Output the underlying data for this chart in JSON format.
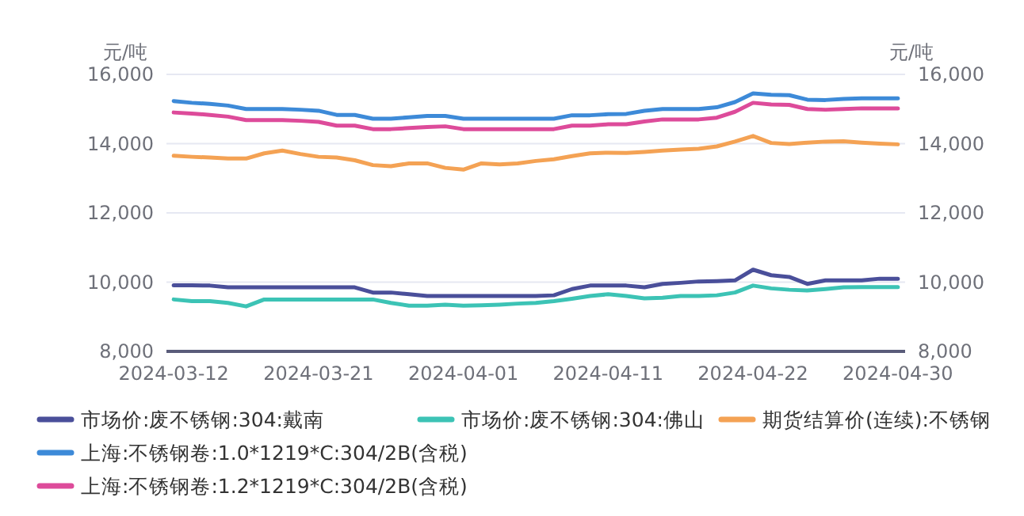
{
  "chart_data": {
    "type": "line",
    "categories": [
      "2024-03-12",
      null,
      null,
      null,
      null,
      null,
      null,
      null,
      "2024-03-21",
      null,
      null,
      null,
      null,
      null,
      null,
      null,
      "2024-04-01",
      null,
      null,
      null,
      null,
      null,
      null,
      null,
      "2024-04-11",
      null,
      null,
      null,
      null,
      null,
      null,
      null,
      "2024-04-22",
      null,
      null,
      null,
      null,
      null,
      null,
      null,
      "2024-04-30"
    ],
    "series": [
      {
        "name": "市场价:废不锈钢:304:戴南",
        "color": "#4a4f9a",
        "values": [
          9910,
          9910,
          9900,
          9850,
          9850,
          9850,
          9850,
          9850,
          9850,
          9850,
          9850,
          9700,
          9700,
          9650,
          9600,
          9600,
          9600,
          9600,
          9600,
          9600,
          9600,
          9620,
          9800,
          9900,
          9900,
          9900,
          9850,
          9950,
          9980,
          10020,
          10030,
          10050,
          10360,
          10200,
          10150,
          9950,
          10050,
          10050,
          10050,
          10100,
          10100
        ]
      },
      {
        "name": "市场价:废不锈钢:304:佛山",
        "color": "#3cc3b5",
        "values": [
          9500,
          9450,
          9450,
          9400,
          9300,
          9500,
          9500,
          9500,
          9500,
          9500,
          9500,
          9500,
          9400,
          9320,
          9320,
          9350,
          9320,
          9330,
          9350,
          9380,
          9400,
          9450,
          9520,
          9600,
          9650,
          9600,
          9530,
          9550,
          9600,
          9600,
          9620,
          9700,
          9900,
          9820,
          9780,
          9760,
          9800,
          9850,
          9860,
          9860,
          9860
        ]
      },
      {
        "name": "期货结算价(连续):不锈钢",
        "color": "#f4a254",
        "values": [
          13650,
          13620,
          13600,
          13570,
          13570,
          13720,
          13800,
          13700,
          13620,
          13600,
          13520,
          13380,
          13350,
          13430,
          13430,
          13300,
          13250,
          13430,
          13400,
          13430,
          13500,
          13550,
          13640,
          13720,
          13740,
          13730,
          13760,
          13800,
          13830,
          13850,
          13920,
          14060,
          14220,
          14020,
          13990,
          14030,
          14060,
          14070,
          14030,
          14000,
          13980
        ]
      },
      {
        "name": "上海:不锈钢卷:1.0*1219*C:304/2B(含税)",
        "color": "#3d8ad8",
        "values": [
          15230,
          15180,
          15150,
          15100,
          15000,
          15000,
          15000,
          14980,
          14950,
          14830,
          14830,
          14720,
          14720,
          14760,
          14800,
          14800,
          14720,
          14720,
          14720,
          14720,
          14720,
          14720,
          14820,
          14820,
          14850,
          14860,
          14950,
          15000,
          15000,
          15000,
          15050,
          15200,
          15450,
          15410,
          15400,
          15270,
          15260,
          15290,
          15310,
          15310,
          15310
        ]
      },
      {
        "name": "上海:不锈钢卷:1.2*1219*C:304/2B(含税)",
        "color": "#dd4b9a",
        "values": [
          14900,
          14870,
          14830,
          14780,
          14680,
          14680,
          14680,
          14660,
          14630,
          14520,
          14520,
          14420,
          14420,
          14450,
          14480,
          14500,
          14420,
          14420,
          14420,
          14420,
          14420,
          14420,
          14520,
          14520,
          14560,
          14560,
          14640,
          14700,
          14700,
          14700,
          14750,
          14920,
          15180,
          15130,
          15120,
          15000,
          14980,
          15000,
          15020,
          15020,
          15020
        ]
      }
    ],
    "ylabel": "元/吨",
    "y2label": "元/吨",
    "ylim": [
      8000,
      16000
    ],
    "yticks": [
      {
        "value": 8000,
        "label": "8,000"
      },
      {
        "value": 10000,
        "label": "10,000"
      },
      {
        "value": 12000,
        "label": "12,000"
      },
      {
        "value": 14000,
        "label": "14,000"
      },
      {
        "value": 16000,
        "label": "16,000"
      }
    ],
    "y2lim": [
      8000,
      16000
    ],
    "y2ticks": [
      {
        "value": 8000,
        "label": "8,000"
      },
      {
        "value": 10000,
        "label": "10,000"
      },
      {
        "value": 12000,
        "label": "12,000"
      },
      {
        "value": 14000,
        "label": "14,000"
      },
      {
        "value": 16000,
        "label": "16,000"
      }
    ],
    "grid": "y",
    "legend": "bottom",
    "marker": "none",
    "line_style": "solid"
  }
}
